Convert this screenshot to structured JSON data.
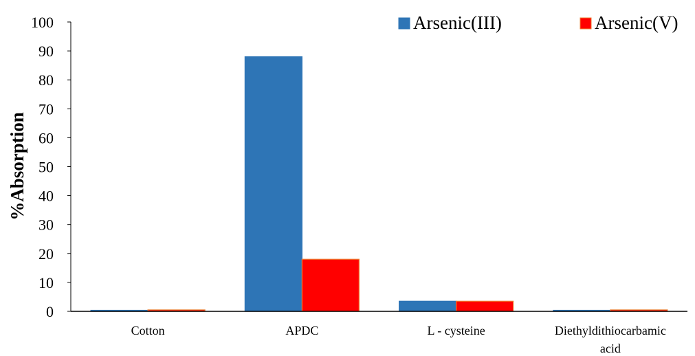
{
  "chart_data": {
    "type": "bar",
    "categories": [
      [
        "Cotton"
      ],
      [
        "APDC"
      ],
      [
        "L - cysteine"
      ],
      [
        "Diethyldithiocarbamic",
        "acid"
      ]
    ],
    "series": [
      {
        "name": "Arsenic(III)",
        "values": [
          0.3,
          88,
          3.5,
          0.3
        ],
        "color": "#2E75B6",
        "stroke": "#2E75B6"
      },
      {
        "name": "Arsenic(V)",
        "values": [
          0.5,
          18,
          3.5,
          0.5
        ],
        "color": "#FF0000",
        "stroke": "#ED7D31"
      }
    ],
    "title": "",
    "xlabel": "",
    "ylabel": "%Absorption",
    "ylim": [
      0,
      100
    ],
    "yticks": [
      0,
      10,
      20,
      30,
      40,
      50,
      60,
      70,
      80,
      90,
      100
    ],
    "grid": false,
    "legend": "top-right"
  }
}
